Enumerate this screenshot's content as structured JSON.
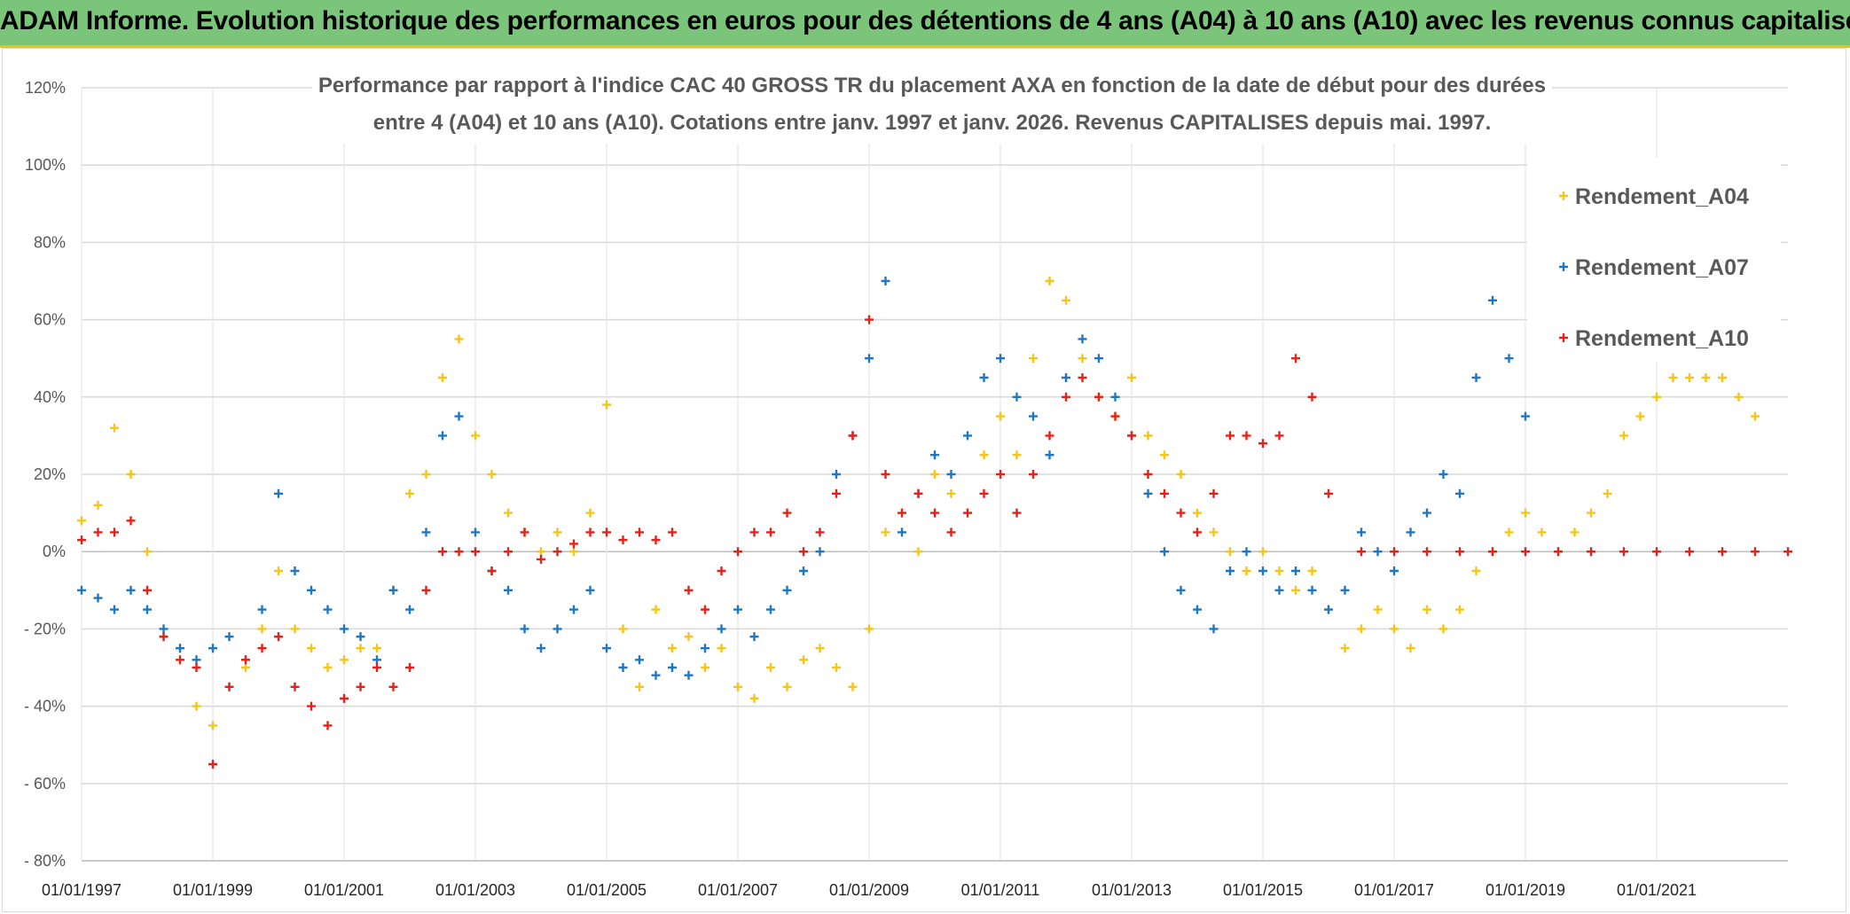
{
  "header": {
    "banner_title": "ADAM Informe. Evolution historique des performances en euros pour des détentions de 4 ans (A04) à 10 ans (A10) avec les revenus connus capitalisés"
  },
  "chart_data": {
    "type": "scatter",
    "title_line1": "Performance par rapport à l'indice CAC 40 GROSS TR  du placement AXA en fonction de la date de début pour des durées",
    "title_line2": "entre 4 (A04) et 10 ans (A10). Cotations entre janv. 1997 et janv. 2026. Revenus CAPITALISES depuis mai. 1997.",
    "xlabel": "",
    "ylabel": "",
    "ylim": [
      -80,
      120
    ],
    "xlim": [
      1997.0,
      2023.0
    ],
    "y_ticks": [
      120,
      100,
      80,
      60,
      40,
      20,
      0,
      -20,
      -40,
      -60,
      -80
    ],
    "y_tick_labels": [
      "120%",
      "100%",
      "80%",
      "60%",
      "40%",
      "20%",
      "0%",
      "- 20%",
      "- 40%",
      "- 60%",
      "- 80%"
    ],
    "x_ticks": [
      1997,
      1999,
      2001,
      2003,
      2005,
      2007,
      2009,
      2011,
      2013,
      2015,
      2017,
      2019,
      2021
    ],
    "x_tick_labels": [
      "01/01/1997",
      "01/01/1999",
      "01/01/2001",
      "01/01/2003",
      "01/01/2005",
      "01/01/2007",
      "01/01/2009",
      "01/01/2011",
      "01/01/2013",
      "01/01/2015",
      "01/01/2017",
      "01/01/2019",
      "01/01/2021"
    ],
    "grid": "horizontal",
    "legend_position": "top-right",
    "marker": "+",
    "series": [
      {
        "name": "Rendement_A04",
        "color": "#f5c518",
        "x": [
          1997.0,
          1997.25,
          1997.5,
          1997.75,
          1998.0,
          1998.25,
          1998.5,
          1998.75,
          1999.0,
          1999.25,
          1999.5,
          1999.75,
          2000.0,
          2000.25,
          2000.5,
          2000.75,
          2001.0,
          2001.25,
          2001.5,
          2001.75,
          2002.0,
          2002.25,
          2002.5,
          2002.75,
          2003.0,
          2003.25,
          2003.5,
          2003.75,
          2004.0,
          2004.25,
          2004.5,
          2004.75,
          2005.0,
          2005.25,
          2005.5,
          2005.75,
          2006.0,
          2006.25,
          2006.5,
          2006.75,
          2007.0,
          2007.25,
          2007.5,
          2007.75,
          2008.0,
          2008.25,
          2008.5,
          2008.75,
          2009.0,
          2009.25,
          2009.5,
          2009.75,
          2010.0,
          2010.25,
          2010.5,
          2010.75,
          2011.0,
          2011.25,
          2011.5,
          2011.75,
          2012.0,
          2012.25,
          2012.5,
          2012.75,
          2013.0,
          2013.25,
          2013.5,
          2013.75,
          2014.0,
          2014.25,
          2014.5,
          2014.75,
          2015.0,
          2015.25,
          2015.5,
          2015.75,
          2016.0,
          2016.25,
          2016.5,
          2016.75,
          2017.0,
          2017.25,
          2017.5,
          2017.75,
          2018.0,
          2018.25,
          2018.5,
          2018.75,
          2019.0,
          2019.25,
          2019.5,
          2019.75,
          2020.0,
          2020.25,
          2020.5,
          2020.75,
          2021.0,
          2021.25,
          2021.5,
          2021.75,
          2022.0,
          2022.25,
          2022.5
        ],
        "values": [
          8,
          12,
          32,
          20,
          0,
          -22,
          -25,
          -40,
          -45,
          -35,
          -30,
          -20,
          -5,
          -20,
          -25,
          -30,
          -28,
          -25,
          -25,
          -10,
          15,
          20,
          45,
          55,
          30,
          20,
          10,
          5,
          0,
          5,
          0,
          10,
          38,
          -20,
          -35,
          -15,
          -25,
          -22,
          -30,
          -25,
          -35,
          -38,
          -30,
          -35,
          -28,
          -25,
          -30,
          -35,
          -20,
          5,
          10,
          0,
          20,
          15,
          10,
          25,
          35,
          25,
          50,
          70,
          65,
          50,
          40,
          35,
          45,
          30,
          25,
          20,
          10,
          5,
          0,
          -5,
          0,
          -5,
          -10,
          -5,
          -15,
          -25,
          -20,
          -15,
          -20,
          -25,
          -15,
          -20,
          -15,
          -5,
          0,
          5,
          10,
          5,
          0,
          5,
          10,
          15,
          30,
          35,
          40,
          45,
          45,
          45,
          45,
          40,
          35
        ]
      },
      {
        "name": "Rendement_A07",
        "color": "#1f77c4",
        "x": [
          1997.0,
          1997.25,
          1997.5,
          1997.75,
          1998.0,
          1998.25,
          1998.5,
          1998.75,
          1999.0,
          1999.25,
          1999.5,
          1999.75,
          2000.0,
          2000.25,
          2000.5,
          2000.75,
          2001.0,
          2001.25,
          2001.5,
          2001.75,
          2002.0,
          2002.25,
          2002.5,
          2002.75,
          2003.0,
          2003.25,
          2003.5,
          2003.75,
          2004.0,
          2004.25,
          2004.5,
          2004.75,
          2005.0,
          2005.25,
          2005.5,
          2005.75,
          2006.0,
          2006.25,
          2006.5,
          2006.75,
          2007.0,
          2007.25,
          2007.5,
          2007.75,
          2008.0,
          2008.25,
          2008.5,
          2008.75,
          2009.0,
          2009.25,
          2009.5,
          2009.75,
          2010.0,
          2010.25,
          2010.5,
          2010.75,
          2011.0,
          2011.25,
          2011.5,
          2011.75,
          2012.0,
          2012.25,
          2012.5,
          2012.75,
          2013.0,
          2013.25,
          2013.5,
          2013.75,
          2014.0,
          2014.25,
          2014.5,
          2014.75,
          2015.0,
          2015.25,
          2015.5,
          2015.75,
          2016.0,
          2016.25,
          2016.5,
          2016.75,
          2017.0,
          2017.25,
          2017.5,
          2017.75,
          2018.0,
          2018.25,
          2018.5,
          2018.75,
          2019.0
        ],
        "values": [
          -10,
          -12,
          -15,
          -10,
          -15,
          -20,
          -25,
          -28,
          -25,
          -22,
          -28,
          -15,
          15,
          -5,
          -10,
          -15,
          -20,
          -22,
          -28,
          -10,
          -15,
          5,
          30,
          35,
          5,
          -5,
          -10,
          -20,
          -25,
          -20,
          -15,
          -10,
          -25,
          -30,
          -28,
          -32,
          -30,
          -32,
          -25,
          -20,
          -15,
          -22,
          -15,
          -10,
          -5,
          0,
          20,
          30,
          50,
          70,
          5,
          15,
          25,
          20,
          30,
          45,
          50,
          40,
          35,
          25,
          45,
          55,
          50,
          40,
          30,
          15,
          0,
          -10,
          -15,
          -20,
          -5,
          0,
          -5,
          -10,
          -5,
          -10,
          -15,
          -10,
          5,
          0,
          -5,
          5,
          10,
          20,
          15,
          45,
          65,
          50,
          35
        ]
      },
      {
        "name": "Rendement_A10",
        "color": "#e8201a",
        "x": [
          1997.0,
          1997.25,
          1997.5,
          1997.75,
          1998.0,
          1998.25,
          1998.5,
          1998.75,
          1999.0,
          1999.25,
          1999.5,
          1999.75,
          2000.0,
          2000.25,
          2000.5,
          2000.75,
          2001.0,
          2001.25,
          2001.5,
          2001.75,
          2002.0,
          2002.25,
          2002.5,
          2002.75,
          2003.0,
          2003.25,
          2003.5,
          2003.75,
          2004.0,
          2004.25,
          2004.5,
          2004.75,
          2005.0,
          2005.25,
          2005.5,
          2005.75,
          2006.0,
          2006.25,
          2006.5,
          2006.75,
          2007.0,
          2007.25,
          2007.5,
          2007.75,
          2008.0,
          2008.25,
          2008.5,
          2008.75,
          2009.0,
          2009.25,
          2009.5,
          2009.75,
          2010.0,
          2010.25,
          2010.5,
          2010.75,
          2011.0,
          2011.25,
          2011.5,
          2011.75,
          2012.0,
          2012.25,
          2012.5,
          2012.75,
          2013.0,
          2013.25,
          2013.5,
          2013.75,
          2014.0,
          2014.25,
          2014.5,
          2014.75,
          2015.0,
          2015.25,
          2015.5,
          2015.75,
          2016.0,
          2016.5,
          2017.0,
          2017.5,
          2018.0,
          2018.5,
          2019.0,
          2019.5,
          2020.0,
          2020.5,
          2021.0,
          2021.5,
          2022.0,
          2022.5,
          2023.0
        ],
        "values": [
          3,
          5,
          5,
          8,
          -10,
          -22,
          -28,
          -30,
          -55,
          -35,
          -28,
          -25,
          -22,
          -35,
          -40,
          -45,
          -38,
          -35,
          -30,
          -35,
          -30,
          -10,
          0,
          0,
          0,
          -5,
          0,
          5,
          -2,
          0,
          2,
          5,
          5,
          3,
          5,
          3,
          5,
          -10,
          -15,
          -5,
          0,
          5,
          5,
          10,
          0,
          5,
          15,
          30,
          60,
          20,
          10,
          15,
          10,
          5,
          10,
          15,
          20,
          10,
          20,
          30,
          40,
          45,
          40,
          35,
          30,
          20,
          15,
          10,
          5,
          15,
          30,
          30,
          28,
          30,
          50,
          40,
          15,
          0,
          0,
          0,
          0,
          0,
          0,
          0,
          0,
          0,
          0,
          0,
          0,
          0,
          0
        ]
      }
    ]
  }
}
